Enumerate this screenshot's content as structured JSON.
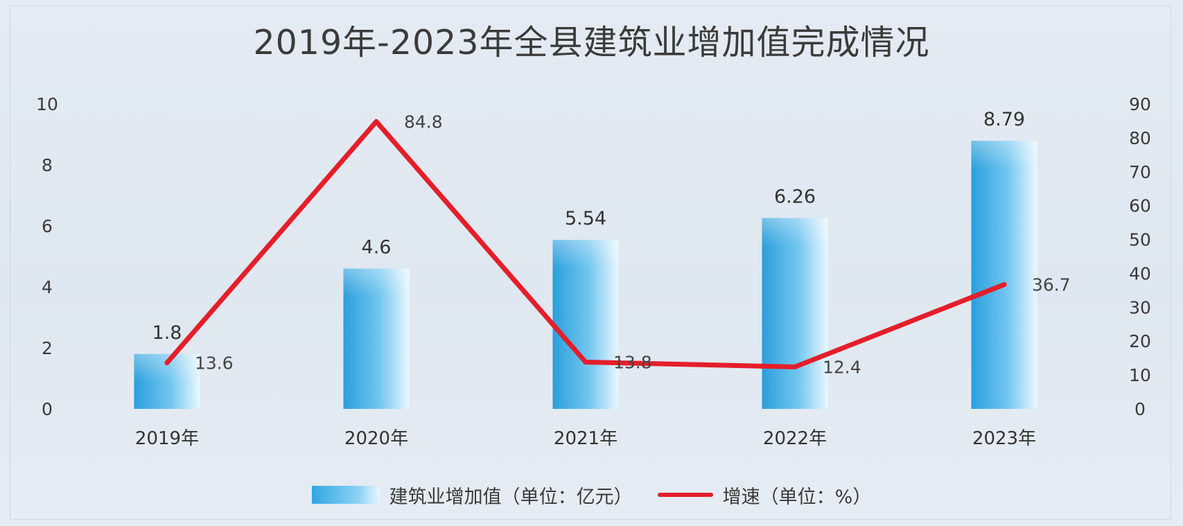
{
  "chart_data": {
    "type": "bar",
    "title": "2019年-2023年全县建筑业增加值完成情况",
    "categories": [
      "2019年",
      "2020年",
      "2021年",
      "2022年",
      "2023年"
    ],
    "series": [
      {
        "name": "建筑业增加值（单位：亿元）",
        "type": "bar",
        "axis": "left",
        "values": [
          1.8,
          4.6,
          5.54,
          6.26,
          8.79
        ],
        "labels": [
          "1.8",
          "4.6",
          "5.54",
          "6.26",
          "8.79"
        ],
        "color": "#2fa7e2"
      },
      {
        "name": "增速（单位：%）",
        "type": "line",
        "axis": "right",
        "values": [
          13.6,
          84.8,
          13.8,
          12.4,
          36.7
        ],
        "labels": [
          "13.6",
          "84.8",
          "13.8",
          "12.4",
          "36.7"
        ],
        "color": "#e41e2a"
      }
    ],
    "y_left": {
      "min": 0,
      "max": 10,
      "ticks": [
        "0",
        "2",
        "4",
        "6",
        "8",
        "10"
      ]
    },
    "y_right": {
      "min": 0,
      "max": 90,
      "ticks": [
        "0",
        "10",
        "20",
        "30",
        "40",
        "50",
        "60",
        "70",
        "80",
        "90"
      ]
    },
    "grid": false,
    "legend_position": "bottom"
  }
}
